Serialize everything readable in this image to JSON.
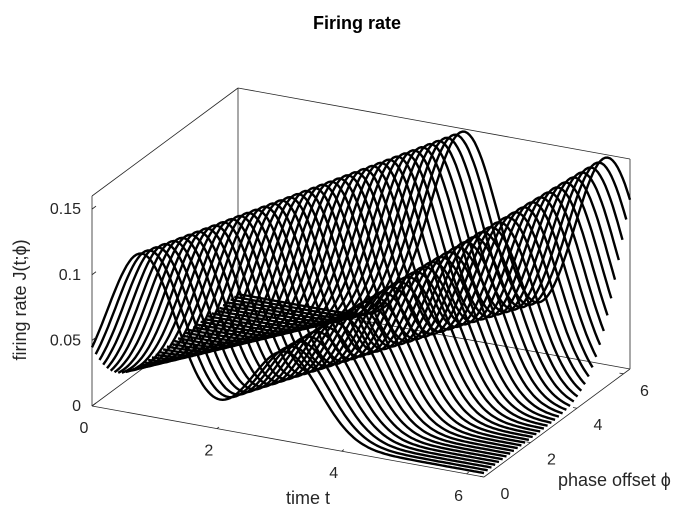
{
  "chart_data": {
    "type": "line",
    "subtype": "3d waterfall",
    "title": "Firing rate",
    "xlabel": "time t",
    "ylabel": "phase offset ϕ",
    "zlabel": "firing rate J(t;ϕ)",
    "xlim": [
      0,
      6.28
    ],
    "ylim": [
      0,
      6.28
    ],
    "zlim": [
      0,
      0.16
    ],
    "x_ticks": [
      "0",
      "2",
      "4",
      "6"
    ],
    "y_ticks": [
      "0",
      "2",
      "4",
      "6"
    ],
    "z_ticks": [
      "0",
      "0.05",
      "0.1",
      "0.15"
    ],
    "x_tick_values": [
      0,
      2,
      4,
      6
    ],
    "y_tick_values": [
      0,
      2,
      4,
      6
    ],
    "z_tick_values": [
      0,
      0.05,
      0.1,
      0.15
    ],
    "grid": false,
    "box": true,
    "line_color": "#000000",
    "phase_samples": 40,
    "time_samples": 160,
    "peak1_t_at_phase0": 0.8,
    "peak2_t_at_phase0": 3.1,
    "peak_t_drift_per_unit_phase": 0.45,
    "peak_width": 0.55,
    "peak1_height_at_phase0": 0.12,
    "peak1_height_at_max_phase": 0.155,
    "peak2_height_at_phase0": 0.065,
    "peak2_height_at_max_phase": 0.155,
    "baseline": 0.003
  }
}
